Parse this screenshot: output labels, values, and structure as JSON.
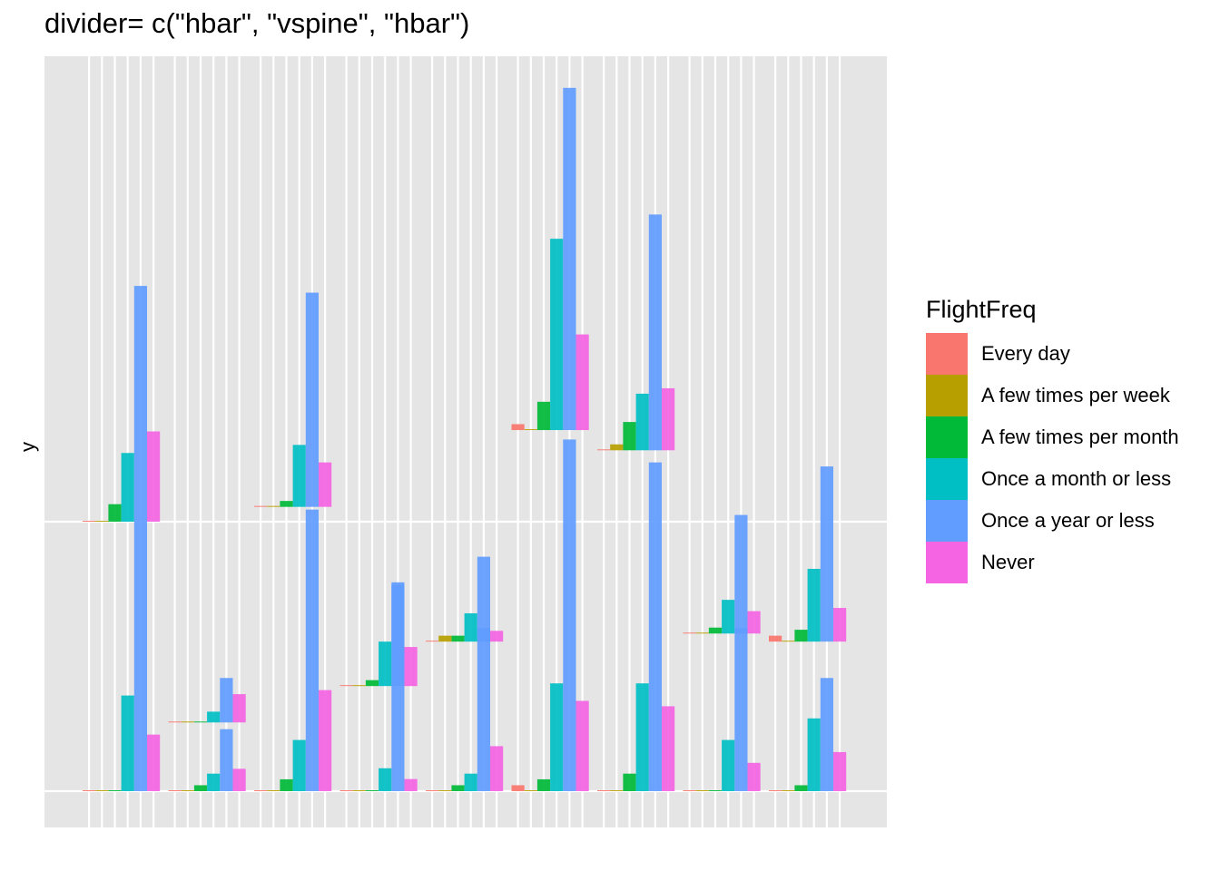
{
  "chart_data": {
    "type": "bar",
    "title": "divider= c(\"hbar\", \"vspine\", \"hbar\")",
    "xlabel": "",
    "ylabel": "y",
    "legend": {
      "title": "FlightFreq",
      "position": "right",
      "entries": [
        {
          "label": "Every day",
          "color": "#F8766D"
        },
        {
          "label": "A few times per week",
          "color": "#B79F00"
        },
        {
          "label": "A few times per month",
          "color": "#00BA38"
        },
        {
          "label": "Once a month or less",
          "color": "#00BFC4"
        },
        {
          "label": "Once a year or less",
          "color": "#619CFF"
        },
        {
          "label": "Never",
          "color": "#F564E3"
        }
      ]
    },
    "grid": true,
    "panel_background": "#E5E5E5",
    "columns": 9,
    "layers": [
      {
        "name": "bottom",
        "cells": [
          {
            "column": 1,
            "values": [
              0.002,
              0.002,
              0.002,
              0.355,
              1.0,
              0.21
            ]
          },
          {
            "column": 2,
            "values": [
              0.002,
              0.002,
              0.022,
              0.065,
              0.23,
              0.083
            ]
          },
          {
            "column": 3,
            "values": [
              0.002,
              0.002,
              0.044,
              0.19,
              1.045,
              0.375
            ]
          },
          {
            "column": 4,
            "values": [
              0.002,
              0.002,
              0.002,
              0.085,
              0.775,
              0.045
            ]
          },
          {
            "column": 5,
            "values": [
              0.002,
              0.002,
              0.022,
              0.065,
              0.605,
              0.167
            ]
          },
          {
            "column": 6,
            "values": [
              0.022,
              0.002,
              0.044,
              0.4,
              1.305,
              0.335
            ]
          },
          {
            "column": 7,
            "values": [
              0.002,
              0.002,
              0.065,
              0.4,
              1.22,
              0.315
            ]
          },
          {
            "column": 8,
            "values": [
              0.002,
              0.002,
              0.002,
              0.19,
              0.605,
              0.105
            ]
          },
          {
            "column": 9,
            "values": [
              0.002,
              0.002,
              0.022,
              0.27,
              0.42,
              0.145
            ]
          }
        ]
      },
      {
        "name": "middle",
        "cells": [
          {
            "column": 2,
            "base": 0.255,
            "values": [
              0.002,
              0.002,
              0.002,
              0.04,
              0.165,
              0.105
            ]
          },
          {
            "column": 4,
            "base": 0.39,
            "values": [
              0.002,
              0.002,
              0.022,
              0.165,
              0.375,
              0.145
            ]
          },
          {
            "column": 5,
            "base": 0.555,
            "values": [
              0.002,
              0.022,
              0.022,
              0.105,
              0.315,
              0.04
            ]
          },
          {
            "column": 8,
            "base": 0.585,
            "values": [
              0.002,
              0.002,
              0.022,
              0.125,
              0.44,
              0.083
            ]
          },
          {
            "column": 9,
            "base": 0.555,
            "values": [
              0.022,
              0.002,
              0.044,
              0.27,
              0.65,
              0.125
            ]
          }
        ]
      },
      {
        "name": "top",
        "cells": [
          {
            "column": 1,
            "base": 1.0,
            "values": [
              0.002,
              0.002,
              0.065,
              0.255,
              0.875,
              0.335
            ]
          },
          {
            "column": 3,
            "base": 1.055,
            "values": [
              0.002,
              0.002,
              0.022,
              0.23,
              0.795,
              0.165
            ]
          },
          {
            "column": 6,
            "base": 1.34,
            "values": [
              0.022,
              0.002,
              0.105,
              0.71,
              1.27,
              0.355
            ]
          },
          {
            "column": 7,
            "base": 1.265,
            "values": [
              0.002,
              0.022,
              0.105,
              0.21,
              0.875,
              0.23
            ]
          }
        ]
      }
    ]
  }
}
